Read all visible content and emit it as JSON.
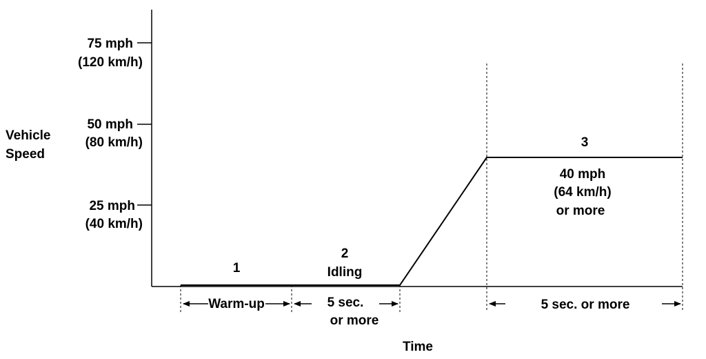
{
  "y_axis": {
    "label_line1": "Vehicle",
    "label_line2": "Speed",
    "ticks": [
      {
        "line1": "75 mph",
        "line2": "(120 km/h)"
      },
      {
        "line1": "50 mph",
        "line2": "(80 km/h)"
      },
      {
        "line1": "25 mph",
        "line2": "(40 km/h)"
      }
    ]
  },
  "x_axis": {
    "label": "Time"
  },
  "phases": {
    "phase1": {
      "number": "1",
      "duration": "Warm-up"
    },
    "phase2": {
      "number": "2",
      "name": "Idling",
      "duration_line1": "5 sec.",
      "duration_line2": "or  more"
    },
    "phase3": {
      "number": "3",
      "speed_line1": "40 mph",
      "speed_line2": "(64 km/h)",
      "speed_line3": "or more",
      "duration": "5 sec. or  more"
    }
  }
}
